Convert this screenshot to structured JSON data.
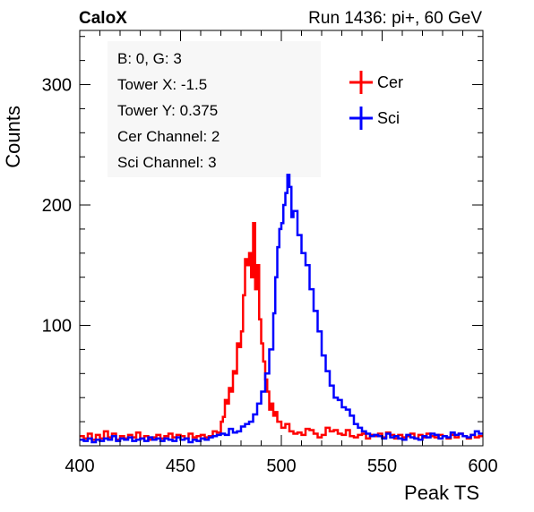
{
  "header": {
    "left_label": "CaloX",
    "right_label": "Run 1436: pi+, 60 GeV"
  },
  "info_box": [
    "B: 0, G: 3",
    "Tower X: -1.5",
    "Tower Y: 0.375",
    "Cer Channel: 2",
    "Sci Channel: 3"
  ],
  "chart_data": {
    "type": "line",
    "xlabel": "Peak TS",
    "ylabel": "Counts",
    "xlim": [
      400,
      600
    ],
    "ylim": [
      0,
      345
    ],
    "x_ticks": [
      400,
      450,
      500,
      550,
      600
    ],
    "y_ticks": [
      100,
      200,
      300
    ],
    "legend_position": "top-right",
    "bin_width": 1,
    "series": [
      {
        "name": "Cer",
        "color": "#ff0000",
        "x": [
          400,
          402,
          404,
          406,
          408,
          410,
          412,
          414,
          416,
          418,
          420,
          422,
          424,
          426,
          428,
          430,
          432,
          434,
          436,
          438,
          440,
          442,
          444,
          446,
          448,
          450,
          452,
          454,
          456,
          458,
          460,
          462,
          464,
          466,
          468,
          470,
          471,
          472,
          473,
          474,
          475,
          476,
          477,
          478,
          479,
          480,
          481,
          482,
          483,
          484,
          485,
          486,
          487,
          488,
          489,
          490,
          491,
          492,
          493,
          494,
          495,
          496,
          497,
          498,
          500,
          502,
          504,
          506,
          508,
          510,
          512,
          514,
          516,
          518,
          520,
          522,
          524,
          526,
          528,
          530,
          532,
          534,
          536,
          538,
          540,
          542,
          544,
          546,
          548,
          550,
          552,
          554,
          556,
          558,
          560,
          562,
          564,
          566,
          568,
          570,
          572,
          574,
          576,
          578,
          580,
          582,
          584,
          586,
          588,
          590,
          592,
          594,
          596,
          598
        ],
        "y": [
          8,
          6,
          10,
          5,
          9,
          6,
          12,
          7,
          10,
          5,
          8,
          6,
          9,
          7,
          11,
          6,
          8,
          5,
          7,
          9,
          6,
          8,
          10,
          7,
          9,
          8,
          6,
          10,
          7,
          8,
          9,
          7,
          8,
          12,
          11,
          20,
          24,
          38,
          35,
          48,
          45,
          62,
          60,
          85,
          82,
          95,
          125,
          155,
          150,
          160,
          140,
          185,
          130,
          150,
          105,
          85,
          70,
          55,
          45,
          30,
          35,
          25,
          28,
          20,
          15,
          18,
          12,
          10,
          11,
          9,
          14,
          13,
          10,
          7,
          9,
          15,
          12,
          13,
          10,
          9,
          13,
          8,
          7,
          9,
          10,
          6,
          9,
          8,
          10,
          7,
          11,
          9,
          6,
          9,
          7,
          8,
          10,
          6,
          9,
          7,
          10,
          8,
          7,
          9,
          8,
          6,
          9,
          7,
          10,
          8,
          6,
          9,
          7,
          8
        ]
      },
      {
        "name": "Sci",
        "color": "#0000ff",
        "x": [
          400,
          402,
          404,
          406,
          408,
          410,
          412,
          414,
          416,
          418,
          420,
          422,
          424,
          426,
          428,
          430,
          432,
          434,
          436,
          438,
          440,
          442,
          444,
          446,
          448,
          450,
          452,
          454,
          456,
          458,
          460,
          462,
          464,
          466,
          468,
          470,
          472,
          474,
          476,
          478,
          480,
          482,
          484,
          486,
          488,
          490,
          492,
          494,
          496,
          497,
          498,
          499,
          500,
          501,
          502,
          503,
          504,
          505,
          506,
          508,
          510,
          512,
          514,
          516,
          518,
          520,
          522,
          524,
          526,
          528,
          530,
          532,
          534,
          536,
          538,
          540,
          542,
          544,
          546,
          548,
          550,
          552,
          554,
          556,
          558,
          560,
          562,
          564,
          566,
          568,
          570,
          572,
          574,
          576,
          578,
          580,
          582,
          584,
          586,
          588,
          590,
          592,
          594,
          596,
          598
        ],
        "y": [
          5,
          4,
          6,
          3,
          5,
          4,
          6,
          5,
          8,
          4,
          6,
          5,
          7,
          4,
          5,
          6,
          4,
          7,
          5,
          6,
          4,
          6,
          5,
          4,
          7,
          5,
          6,
          3,
          5,
          4,
          6,
          5,
          7,
          8,
          9,
          10,
          9,
          14,
          11,
          12,
          16,
          18,
          20,
          26,
          35,
          45,
          60,
          80,
          110,
          140,
          165,
          180,
          185,
          200,
          210,
          225,
          215,
          190,
          195,
          175,
          160,
          150,
          130,
          112,
          95,
          75,
          62,
          50,
          40,
          38,
          32,
          30,
          25,
          18,
          15,
          12,
          10,
          8,
          9,
          8,
          6,
          10,
          7,
          8,
          6,
          5,
          9,
          7,
          6,
          5,
          8,
          7,
          10,
          9,
          6,
          8,
          7,
          11,
          9,
          10,
          8,
          7,
          9,
          12,
          10
        ]
      }
    ]
  }
}
